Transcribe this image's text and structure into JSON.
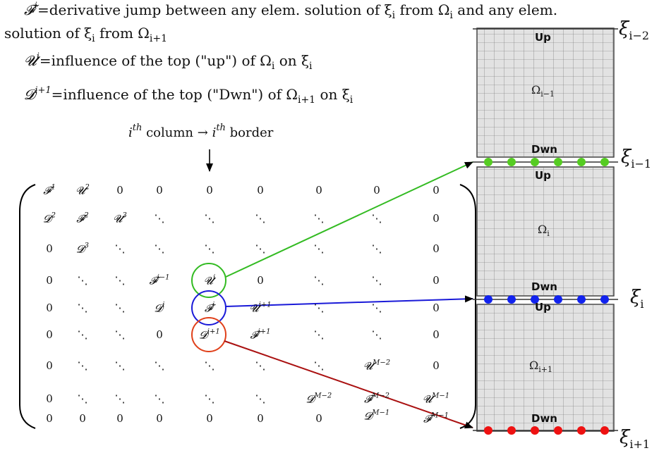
{
  "text": {
    "line1": {
      "sym": "𝓕",
      "sup": "i",
      "text": "=derivative jump between any elem. solution of ξ",
      "sub1": "i",
      "text2": " from Ω",
      "sub2": "i",
      "text3": " and any elem."
    },
    "line2": {
      "text": "solution of ξ",
      "sub1": "i",
      "text2": " from Ω",
      "sub2": "i+1"
    },
    "line3": {
      "sym": "𝓤",
      "sup": "i",
      "text": "=influence of the top (\"up\") of Ω",
      "sub1": "i",
      "text2": " on ξ",
      "sub2": "i"
    },
    "line4": {
      "sym": "𝓓",
      "sup": "i+1",
      "text": "=influence of the top (\"Dwn\") of Ω",
      "sub1": "i+1",
      "text2": " on ξ",
      "sub2": "i"
    },
    "column_note": {
      "a": "i",
      "a_sup": "th",
      "b": " column → ",
      "c": "i",
      "c_sup": "th",
      "d": " border"
    }
  },
  "matrix": {
    "rows": [
      [
        {
          "t": "𝓕",
          "s": "1"
        },
        {
          "t": "𝓤",
          "s": "2"
        },
        {
          "t": "0"
        },
        {
          "t": "0"
        },
        {
          "t": "0"
        },
        {
          "t": "0"
        },
        {
          "t": "0"
        },
        {
          "t": "0"
        },
        {
          "t": "0"
        }
      ],
      [
        {
          "t": "𝓓",
          "s": "2"
        },
        {
          "t": "𝓕",
          "s": "2"
        },
        {
          "t": "𝓤",
          "s": "3"
        },
        {
          "t": "⋱"
        },
        {
          "t": "⋱"
        },
        {
          "t": "⋱"
        },
        {
          "t": "⋱"
        },
        {
          "t": "⋱"
        },
        {
          "t": "0"
        }
      ],
      [
        {
          "t": "0"
        },
        {
          "t": "𝓓",
          "s": "3"
        },
        {
          "t": "⋱"
        },
        {
          "t": "⋱"
        },
        {
          "t": "⋱"
        },
        {
          "t": "⋱"
        },
        {
          "t": "⋱"
        },
        {
          "t": "⋱"
        },
        {
          "t": "0"
        }
      ],
      [
        {
          "t": "0"
        },
        {
          "t": "⋱"
        },
        {
          "t": "⋱"
        },
        {
          "t": "𝓕",
          "s": "i−1"
        },
        {
          "t": "𝓤",
          "s": "i"
        },
        {
          "t": "0"
        },
        {
          "t": "⋱"
        },
        {
          "t": "⋱"
        },
        {
          "t": "0"
        }
      ],
      [
        {
          "t": "0"
        },
        {
          "t": "⋱"
        },
        {
          "t": "⋱"
        },
        {
          "t": "𝓓",
          "s": "i"
        },
        {
          "t": "𝓕",
          "s": "i"
        },
        {
          "t": "𝓤",
          "s": "i+1"
        },
        {
          "t": "⋱"
        },
        {
          "t": "⋱"
        },
        {
          "t": "0"
        }
      ],
      [
        {
          "t": "0"
        },
        {
          "t": "⋱"
        },
        {
          "t": "⋱"
        },
        {
          "t": "0"
        },
        {
          "t": "𝓓",
          "s": "i+1"
        },
        {
          "t": "𝓕",
          "s": "i+1"
        },
        {
          "t": "⋱"
        },
        {
          "t": "⋱"
        },
        {
          "t": "0"
        }
      ],
      [
        {
          "t": "0"
        },
        {
          "t": "⋱"
        },
        {
          "t": "⋱"
        },
        {
          "t": "⋱"
        },
        {
          "t": "⋱"
        },
        {
          "t": "⋱"
        },
        {
          "t": "⋱"
        },
        {
          "t": "𝓤",
          "s": "M−2"
        },
        {
          "t": "0"
        }
      ],
      [
        {
          "t": "0"
        },
        {
          "t": "⋱"
        },
        {
          "t": "⋱"
        },
        {
          "t": "⋱"
        },
        {
          "t": "⋱"
        },
        {
          "t": "⋱"
        },
        {
          "t": "𝓓",
          "s": "M−2"
        },
        {
          "t": "𝓕",
          "s": "M−2"
        },
        {
          "t": "𝓤",
          "s": "M−1"
        }
      ],
      [
        {
          "t": "0"
        },
        {
          "t": "0"
        },
        {
          "t": "0"
        },
        {
          "t": "0"
        },
        {
          "t": "0"
        },
        {
          "t": "0"
        },
        {
          "t": "0"
        },
        {
          "t": "𝓓",
          "s": "M−1"
        },
        {
          "t": "𝓕",
          "s": "M−1"
        }
      ]
    ]
  },
  "blocks": [
    {
      "up": "Up",
      "omega": "Ω",
      "omega_sub": "i−1",
      "dwn": "Dwn"
    },
    {
      "up": "Up",
      "omega": "Ω",
      "omega_sub": "i",
      "dwn": "Dwn"
    },
    {
      "up": "Up",
      "omega": "Ω",
      "omega_sub": "i+1",
      "dwn": "Dwn"
    }
  ],
  "borders": [
    {
      "xi": "ξ",
      "sub": "i−2"
    },
    {
      "xi": "ξ",
      "sub": "i−1",
      "dot_color": "#55cc22"
    },
    {
      "xi": "ξ",
      "sub": "i",
      "dot_color": "#1122ee"
    },
    {
      "xi": "ξ",
      "sub": "i+1",
      "dot_color": "#ee1111"
    }
  ],
  "colors": {
    "green": "#33bb22",
    "blue": "#1a1ad8",
    "red": "#e0401a",
    "darkred": "#aa1111",
    "grid": "#555555",
    "block_fill": "#e2e2e2"
  }
}
